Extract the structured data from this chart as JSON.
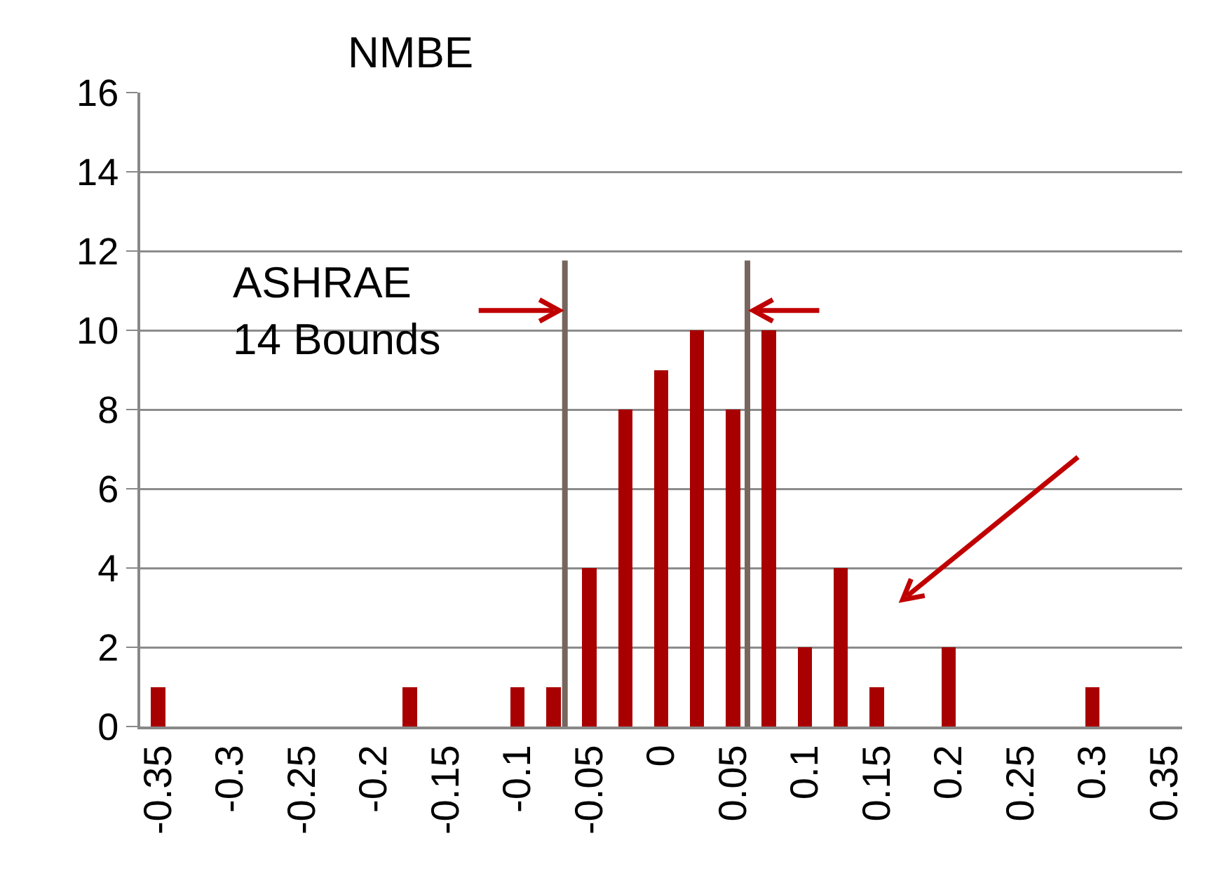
{
  "chart_data": {
    "type": "bar",
    "title": "NMBE",
    "x": [
      -0.35,
      -0.175,
      -0.1,
      -0.075,
      -0.05,
      -0.025,
      0,
      0.025,
      0.05,
      0.075,
      0.1,
      0.125,
      0.15,
      0.2,
      0.3
    ],
    "values": [
      1,
      1,
      1,
      1,
      4,
      8,
      9,
      10,
      8,
      10,
      2,
      4,
      1,
      2,
      1
    ],
    "color": "#a80000",
    "xlim": [
      -0.3625,
      0.3625
    ],
    "xticks": [
      -0.35,
      -0.3,
      -0.25,
      -0.2,
      -0.15,
      -0.1,
      -0.05,
      0,
      0.05,
      0.1,
      0.15,
      0.2,
      0.25,
      0.3,
      0.35
    ],
    "ylim": [
      0,
      16
    ],
    "yticks": [
      0,
      2,
      4,
      6,
      8,
      10,
      12,
      14,
      16
    ],
    "grid": "y",
    "ref_lines": [
      {
        "axis": "x",
        "value": -0.067,
        "label": "ASHRAE\n14 Bounds",
        "color": "#76665e"
      },
      {
        "axis": "x",
        "value": 0.06,
        "color": "#76665e"
      }
    ]
  }
}
